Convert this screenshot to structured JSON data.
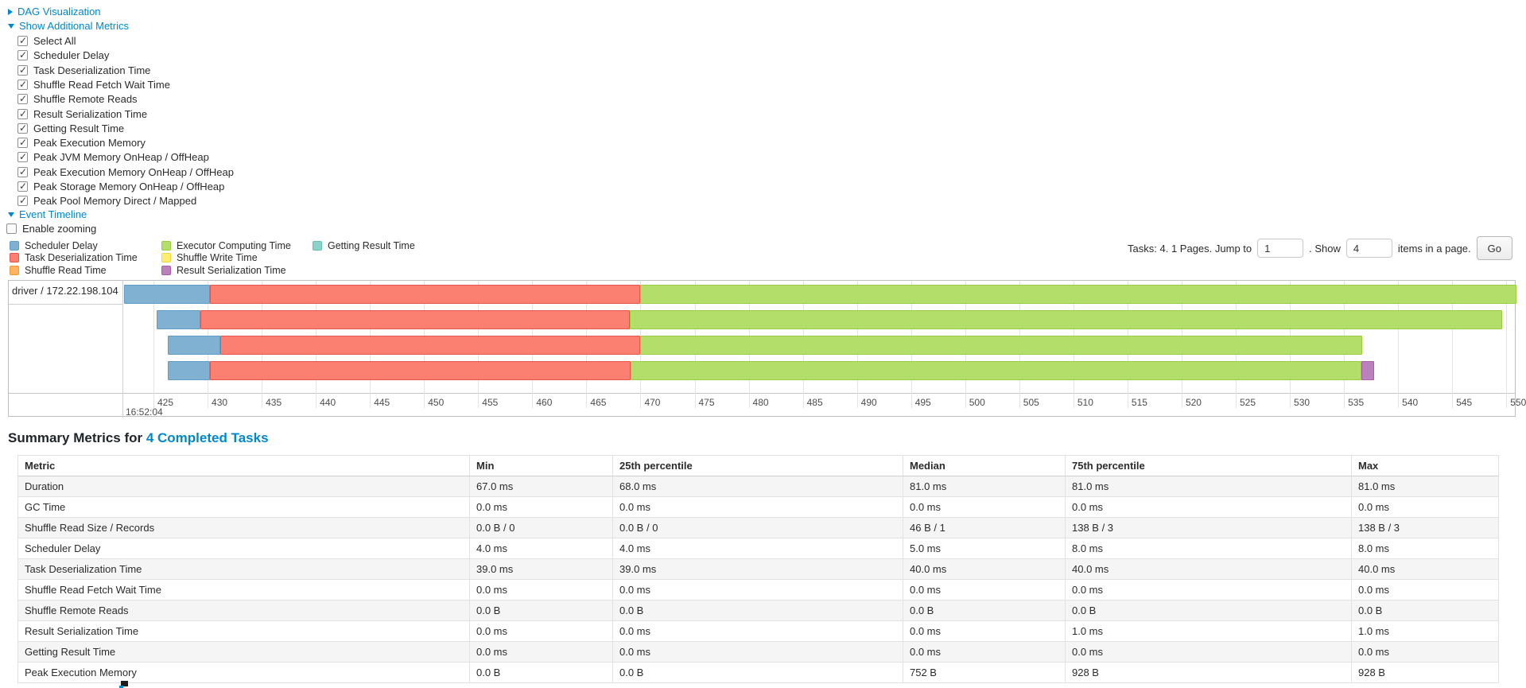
{
  "colors": {
    "link": "#0088cc",
    "fills": {
      "scheduler_delay": "#80B1D3",
      "task_deserialization": "#FB8072",
      "shuffle_read": "#FDB462",
      "executor_computing": "#B3DE69",
      "shuffle_write": "#FFED6F",
      "result_serialization": "#BC80BD",
      "getting_result": "#8DD3C7"
    },
    "borders": {
      "scheduler_delay": "#5f9cc7",
      "task_deserialization": "#e8564a",
      "shuffle_read": "#f59a33",
      "executor_computing": "#99cc3e",
      "shuffle_write": "#f0d93f",
      "result_serialization": "#a55ea7",
      "getting_result": "#65c0af"
    }
  },
  "controls": {
    "dag_link": "DAG Visualization",
    "metrics_link": "Show Additional Metrics",
    "checkboxes": [
      {
        "label": "Select All",
        "checked": true
      },
      {
        "label": "Scheduler Delay",
        "checked": true
      },
      {
        "label": "Task Deserialization Time",
        "checked": true
      },
      {
        "label": "Shuffle Read Fetch Wait Time",
        "checked": true
      },
      {
        "label": "Shuffle Remote Reads",
        "checked": true
      },
      {
        "label": "Result Serialization Time",
        "checked": true
      },
      {
        "label": "Getting Result Time",
        "checked": true
      },
      {
        "label": "Peak Execution Memory",
        "checked": true
      },
      {
        "label": "Peak JVM Memory OnHeap / OffHeap",
        "checked": true
      },
      {
        "label": "Peak Execution Memory OnHeap / OffHeap",
        "checked": true
      },
      {
        "label": "Peak Storage Memory OnHeap / OffHeap",
        "checked": true
      },
      {
        "label": "Peak Pool Memory Direct / Mapped",
        "checked": true
      }
    ],
    "event_timeline_link": "Event Timeline",
    "enable_zooming": {
      "label": "Enable zooming",
      "checked": false
    }
  },
  "pagination": {
    "tasks_text": "Tasks: 4. 1 Pages. Jump to",
    "jump_value": "1",
    "show_text": ". Show",
    "show_value": "4",
    "items_text": "items in a page.",
    "go_label": "Go"
  },
  "chart_data": {
    "type": "timeline",
    "title": "Event Timeline",
    "group_label": "driver / 172.22.198.104",
    "x_axis": {
      "start": 425,
      "end": 550,
      "step": 5,
      "time_label": "16:52:04",
      "unit": "ms within second"
    },
    "legend_columns": [
      [
        {
          "key": "scheduler_delay",
          "label": "Scheduler Delay"
        },
        {
          "key": "task_deserialization",
          "label": "Task Deserialization Time"
        },
        {
          "key": "shuffle_read",
          "label": "Shuffle Read Time"
        }
      ],
      [
        {
          "key": "executor_computing",
          "label": "Executor Computing Time"
        },
        {
          "key": "shuffle_write",
          "label": "Shuffle Write Time"
        },
        {
          "key": "result_serialization",
          "label": "Result Serialization Time"
        }
      ],
      [
        {
          "key": "getting_result",
          "label": "Getting Result Time"
        }
      ]
    ],
    "tasks": [
      {
        "segments": [
          {
            "key": "scheduler_delay",
            "start": 422.3,
            "end": 430.2
          },
          {
            "key": "task_deserialization",
            "start": 430.2,
            "end": 470.0
          },
          {
            "key": "executor_computing",
            "start": 470.0,
            "end": 553.0
          }
        ]
      },
      {
        "segments": [
          {
            "key": "scheduler_delay",
            "start": 425.3,
            "end": 429.3
          },
          {
            "key": "task_deserialization",
            "start": 429.3,
            "end": 469.0
          },
          {
            "key": "executor_computing",
            "start": 469.0,
            "end": 549.6
          }
        ]
      },
      {
        "segments": [
          {
            "key": "scheduler_delay",
            "start": 426.3,
            "end": 431.2
          },
          {
            "key": "task_deserialization",
            "start": 431.2,
            "end": 470.0
          },
          {
            "key": "executor_computing",
            "start": 470.0,
            "end": 536.7
          }
        ]
      },
      {
        "segments": [
          {
            "key": "scheduler_delay",
            "start": 426.3,
            "end": 430.2
          },
          {
            "key": "task_deserialization",
            "start": 430.2,
            "end": 469.1
          },
          {
            "key": "executor_computing",
            "start": 469.1,
            "end": 536.6
          },
          {
            "key": "result_serialization",
            "start": 536.6,
            "end": 537.8
          }
        ]
      }
    ]
  },
  "summary": {
    "title_prefix": "Summary Metrics for ",
    "title_link": "4 Completed Tasks",
    "table": {
      "headers": [
        "Metric",
        "Min",
        "25th percentile",
        "Median",
        "75th percentile",
        "Max"
      ],
      "rows": [
        {
          "metric": "Duration",
          "values": [
            "67.0 ms",
            "68.0 ms",
            "81.0 ms",
            "81.0 ms",
            "81.0 ms"
          ]
        },
        {
          "metric": "GC Time",
          "values": [
            "0.0 ms",
            "0.0 ms",
            "0.0 ms",
            "0.0 ms",
            "0.0 ms"
          ]
        },
        {
          "metric": "Shuffle Read Size / Records",
          "values": [
            "0.0 B / 0",
            "0.0 B / 0",
            "46 B / 1",
            "138 B / 3",
            "138 B / 3"
          ]
        },
        {
          "metric": "Scheduler Delay",
          "values": [
            "4.0 ms",
            "4.0 ms",
            "5.0 ms",
            "8.0 ms",
            "8.0 ms"
          ]
        },
        {
          "metric": "Task Deserialization Time",
          "values": [
            "39.0 ms",
            "39.0 ms",
            "40.0 ms",
            "40.0 ms",
            "40.0 ms"
          ]
        },
        {
          "metric": "Shuffle Read Fetch Wait Time",
          "values": [
            "0.0 ms",
            "0.0 ms",
            "0.0 ms",
            "0.0 ms",
            "0.0 ms"
          ]
        },
        {
          "metric": "Shuffle Remote Reads",
          "values": [
            "0.0 B",
            "0.0 B",
            "0.0 B",
            "0.0 B",
            "0.0 B"
          ]
        },
        {
          "metric": "Result Serialization Time",
          "values": [
            "0.0 ms",
            "0.0 ms",
            "0.0 ms",
            "1.0 ms",
            "1.0 ms"
          ]
        },
        {
          "metric": "Getting Result Time",
          "values": [
            "0.0 ms",
            "0.0 ms",
            "0.0 ms",
            "0.0 ms",
            "0.0 ms"
          ]
        },
        {
          "metric": "Peak Execution Memory",
          "values": [
            "0.0 B",
            "0.0 B",
            "752 B",
            "928 B",
            "928 B"
          ]
        }
      ]
    }
  }
}
